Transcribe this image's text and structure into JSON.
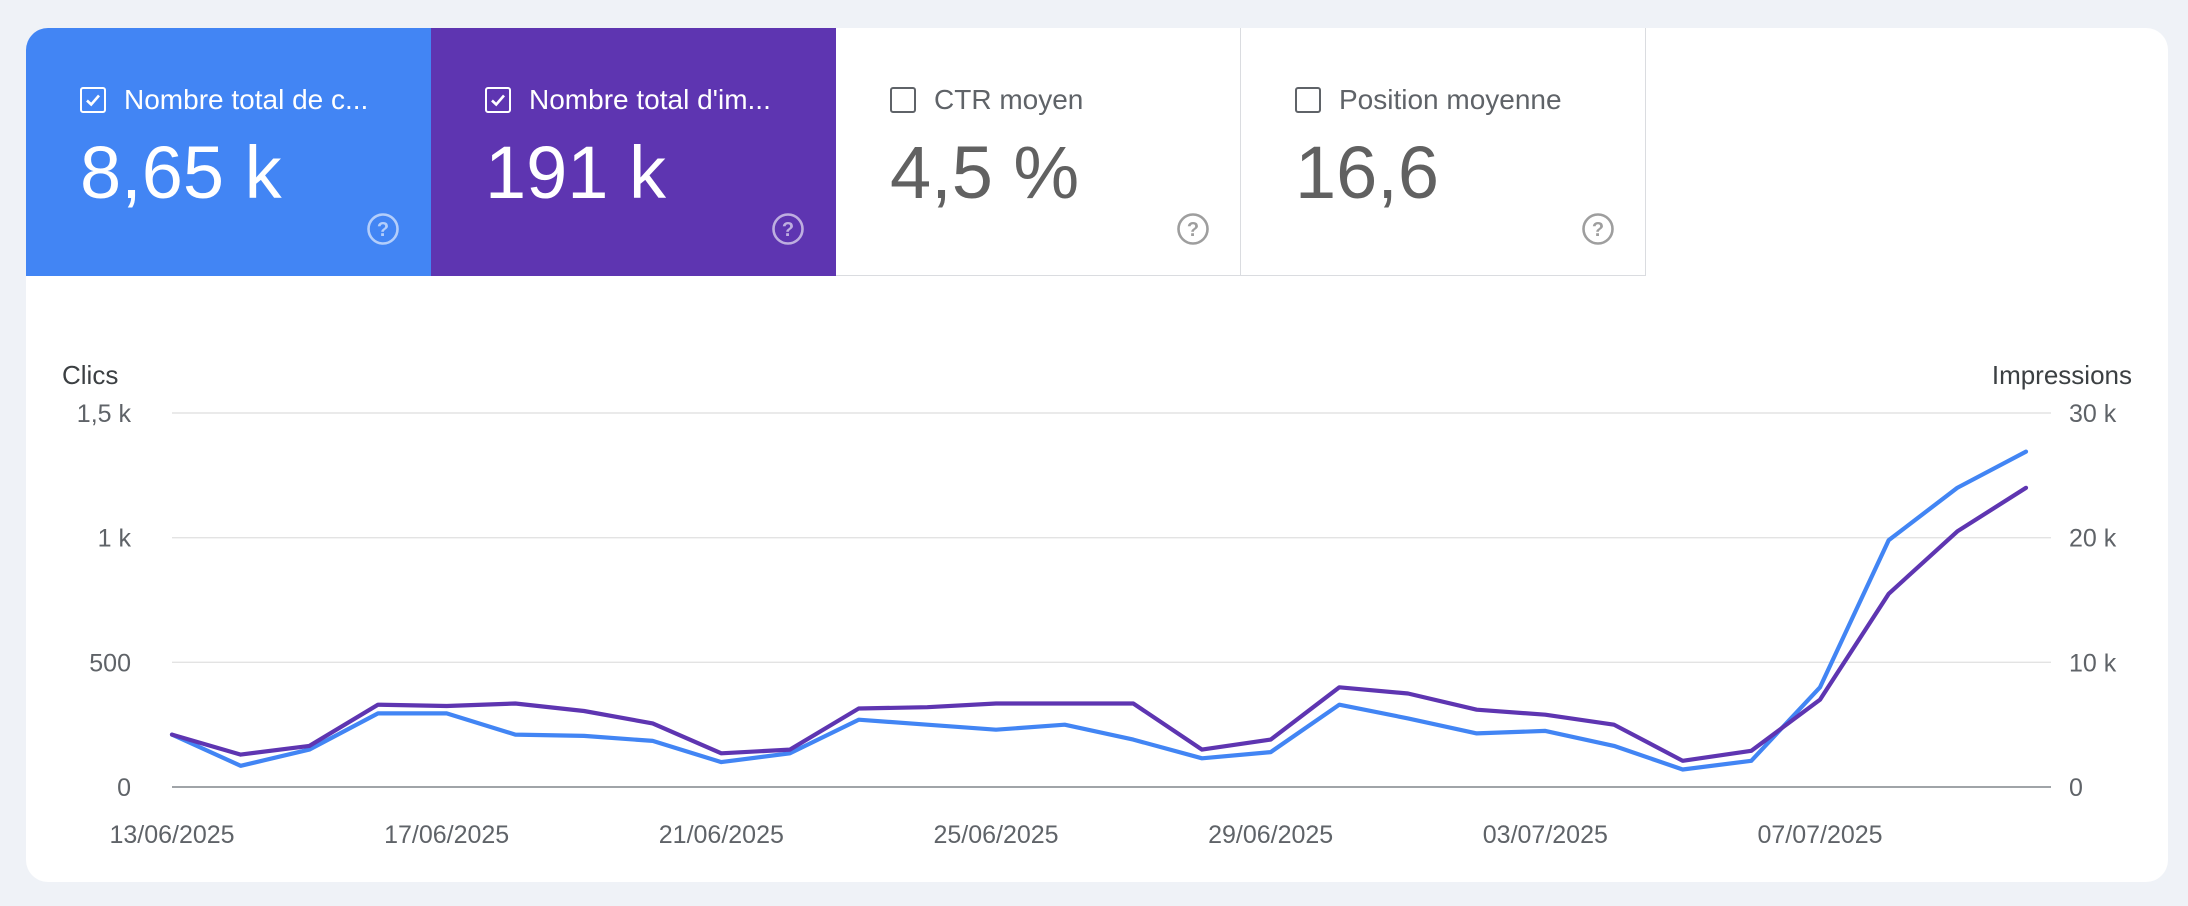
{
  "metrics": {
    "clicks": {
      "label": "Nombre total de c...",
      "value": "8,65 k",
      "checked": true,
      "color": "#4285f4",
      "help_icon": "help-circle-icon"
    },
    "impressions": {
      "label": "Nombre total d'im...",
      "value": "191 k",
      "checked": true,
      "color": "#5e35b1",
      "help_icon": "help-circle-icon"
    },
    "ctr": {
      "label": "CTR moyen",
      "value": "4,5 %",
      "checked": false,
      "help_icon": "help-circle-icon"
    },
    "position": {
      "label": "Position moyenne",
      "value": "16,6",
      "checked": false,
      "help_icon": "help-circle-icon"
    }
  },
  "chart_data": {
    "type": "line",
    "left_axis_title": "Clics",
    "right_axis_title": "Impressions",
    "y_left_ticks": [
      "0",
      "500",
      "1 k",
      "1,5 k"
    ],
    "y_right_ticks": [
      "0",
      "10 k",
      "20 k",
      "30 k"
    ],
    "ylim_left": [
      0,
      1500
    ],
    "ylim_right": [
      0,
      30000
    ],
    "x_tick_labels": [
      "13/06/2025",
      "17/06/2025",
      "21/06/2025",
      "25/06/2025",
      "29/06/2025",
      "03/07/2025",
      "07/07/2025"
    ],
    "x_tick_indices": [
      0,
      4,
      8,
      12,
      16,
      20,
      24
    ],
    "x": [
      "13/06/2025",
      "14/06/2025",
      "15/06/2025",
      "16/06/2025",
      "17/06/2025",
      "18/06/2025",
      "19/06/2025",
      "20/06/2025",
      "21/06/2025",
      "22/06/2025",
      "23/06/2025",
      "24/06/2025",
      "25/06/2025",
      "26/06/2025",
      "27/06/2025",
      "28/06/2025",
      "29/06/2025",
      "30/06/2025",
      "01/07/2025",
      "02/07/2025",
      "03/07/2025",
      "04/07/2025",
      "05/07/2025",
      "06/07/2025",
      "07/07/2025",
      "08/07/2025",
      "09/07/2025",
      "10/07/2025"
    ],
    "grid": true,
    "series": [
      {
        "name": "Clics",
        "axis": "left",
        "color": "#4285f4",
        "values": [
          210,
          85,
          150,
          295,
          295,
          210,
          205,
          185,
          100,
          135,
          270,
          250,
          230,
          250,
          190,
          115,
          140,
          330,
          275,
          215,
          225,
          165,
          70,
          105,
          400,
          990,
          1200,
          1345
        ]
      },
      {
        "name": "Impressions",
        "axis": "right",
        "color": "#5e35b1",
        "values": [
          4200,
          2600,
          3300,
          6600,
          6500,
          6700,
          6100,
          5100,
          2700,
          3000,
          6300,
          6400,
          6700,
          6700,
          6700,
          3000,
          3800,
          8000,
          7500,
          6200,
          5800,
          5000,
          2100,
          2900,
          7000,
          15500,
          20500,
          24000
        ]
      }
    ]
  }
}
